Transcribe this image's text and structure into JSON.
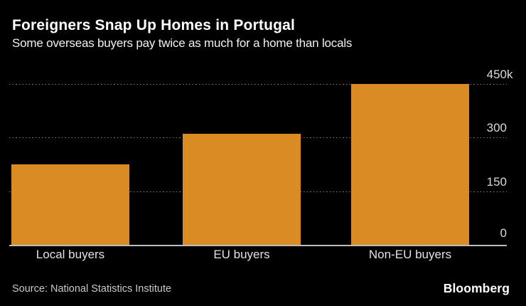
{
  "header": {
    "title": "Foreigners Snap Up Homes in Portugal",
    "subtitle": "Some overseas buyers pay twice as much for a home than locals"
  },
  "footer": {
    "source": "Source: National Statistics Institute",
    "brand": "Bloomberg"
  },
  "colors": {
    "background": "#000000",
    "bar": "#DB8B24",
    "title_text": "#FFFFFF",
    "axis_text": "#D9D9D9",
    "gridline": "#7D7D7D",
    "baseline": "#BDBDBD"
  },
  "chart_data": {
    "type": "bar",
    "title": "Foreigners Snap Up Homes in Portugal",
    "subtitle": "Some overseas buyers pay twice as much for a home than locals",
    "categories": [
      "Local buyers",
      "EU buyers",
      "Non-EU buyers"
    ],
    "values": [
      225,
      310,
      450
    ],
    "values_unit": "thousands (k)",
    "xlabel": "",
    "ylabel": "",
    "ylim": [
      0,
      450
    ],
    "yticks": [
      {
        "value": 0,
        "label": "0",
        "suffix": ""
      },
      {
        "value": 150,
        "label": "150",
        "suffix": ""
      },
      {
        "value": 300,
        "label": "300",
        "suffix": ""
      },
      {
        "value": 450,
        "label": "450",
        "suffix": "k"
      }
    ],
    "grid": "horizontal-dotted",
    "legend": "none",
    "yaxis_position": "right",
    "bar_color": "#DB8B24",
    "source": "Source: National Statistics Institute",
    "brand": "Bloomberg"
  }
}
